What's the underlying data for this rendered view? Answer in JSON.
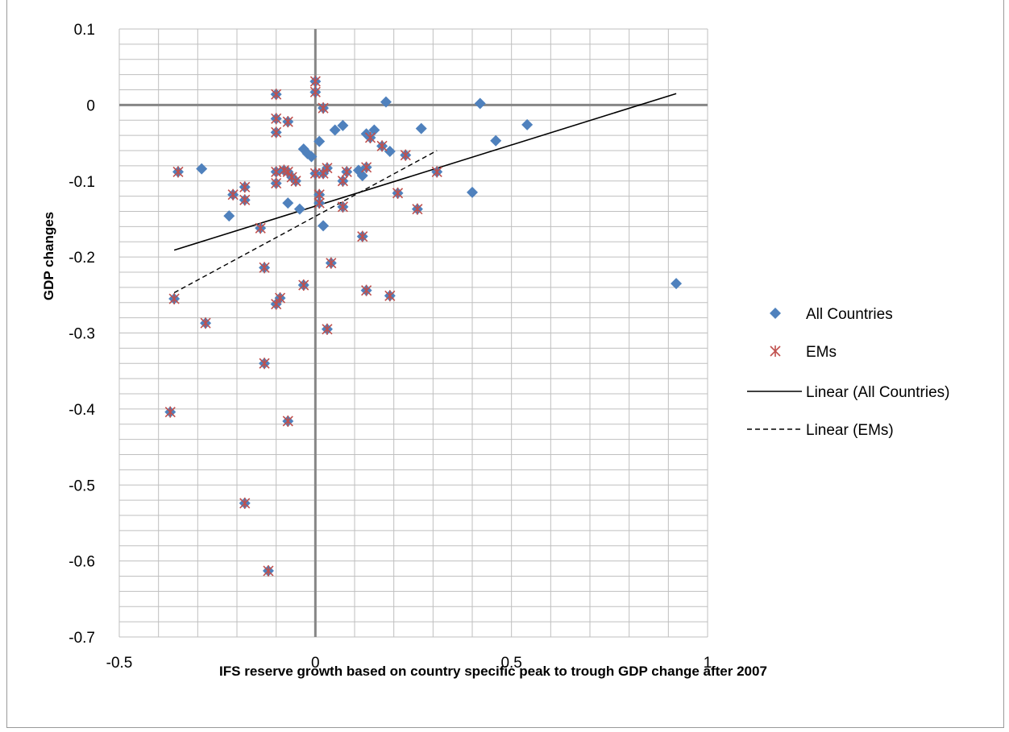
{
  "chart_data": {
    "type": "scatter",
    "title": "",
    "xlabel": "IFS reserve growth based on country specific peak to trough GDP change after 2007",
    "ylabel": "GDP changes",
    "xlim": [
      -0.5,
      1
    ],
    "ylim": [
      -0.7,
      0.1
    ],
    "x_major_step": 0.5,
    "x_minor_step": 0.1,
    "y_major_step": 0.1,
    "y_minor_step": 0.02,
    "x_tick_labels": [
      "-0.5",
      "0",
      "0.5",
      "1"
    ],
    "y_tick_labels": [
      "0.1",
      "0",
      "-0.1",
      "-0.2",
      "-0.3",
      "-0.4",
      "-0.5",
      "-0.6",
      "-0.7"
    ],
    "grid": true,
    "legend_position": "right",
    "colors": {
      "all_countries": "#4F81BD",
      "ems": "#C0504D",
      "linear_all": "#000000",
      "linear_ems": "#000000",
      "grid_minor": "#BFBFBF",
      "grid_zero": "#868686"
    },
    "series": [
      {
        "name": "All Countries",
        "marker": "diamond",
        "points": [
          [
            -0.35,
            -0.088
          ],
          [
            -0.29,
            -0.084
          ],
          [
            -0.22,
            -0.146
          ],
          [
            -0.21,
            -0.118
          ],
          [
            -0.18,
            -0.108
          ],
          [
            -0.18,
            -0.125
          ],
          [
            -0.14,
            -0.162
          ],
          [
            -0.13,
            -0.214
          ],
          [
            -0.36,
            -0.255
          ],
          [
            -0.28,
            -0.287
          ],
          [
            -0.37,
            -0.404
          ],
          [
            -0.13,
            -0.34
          ],
          [
            -0.18,
            -0.524
          ],
          [
            -0.12,
            -0.613
          ],
          [
            -0.1,
            0.014
          ],
          [
            -0.1,
            -0.018
          ],
          [
            -0.1,
            -0.036
          ],
          [
            -0.1,
            -0.103
          ],
          [
            -0.1,
            -0.088
          ],
          [
            -0.08,
            -0.086
          ],
          [
            -0.07,
            -0.022
          ],
          [
            -0.07,
            -0.129
          ],
          [
            -0.07,
            -0.088
          ],
          [
            -0.06,
            -0.095
          ],
          [
            -0.05,
            -0.1
          ],
          [
            -0.04,
            -0.137
          ],
          [
            -0.03,
            -0.058
          ],
          [
            -0.02,
            -0.064
          ],
          [
            -0.01,
            -0.068
          ],
          [
            -0.03,
            -0.237
          ],
          [
            -0.09,
            -0.254
          ],
          [
            -0.1,
            -0.262
          ],
          [
            -0.07,
            -0.416
          ],
          [
            0.0,
            0.031
          ],
          [
            0.0,
            0.017
          ],
          [
            0.0,
            -0.09
          ],
          [
            0.01,
            -0.118
          ],
          [
            0.01,
            -0.129
          ],
          [
            0.01,
            -0.048
          ],
          [
            0.02,
            -0.004
          ],
          [
            0.02,
            -0.09
          ],
          [
            0.02,
            -0.159
          ],
          [
            0.03,
            -0.083
          ],
          [
            0.03,
            -0.295
          ],
          [
            0.04,
            -0.208
          ],
          [
            0.05,
            -0.033
          ],
          [
            0.07,
            -0.027
          ],
          [
            0.07,
            -0.1
          ],
          [
            0.07,
            -0.134
          ],
          [
            0.08,
            -0.088
          ],
          [
            0.11,
            -0.086
          ],
          [
            0.12,
            -0.093
          ],
          [
            0.12,
            -0.173
          ],
          [
            0.13,
            -0.038
          ],
          [
            0.13,
            -0.082
          ],
          [
            0.14,
            -0.043
          ],
          [
            0.15,
            -0.033
          ],
          [
            0.13,
            -0.244
          ],
          [
            0.17,
            -0.054
          ],
          [
            0.18,
            0.004
          ],
          [
            0.19,
            -0.061
          ],
          [
            0.19,
            -0.251
          ],
          [
            0.21,
            -0.116
          ],
          [
            0.23,
            -0.066
          ],
          [
            0.26,
            -0.137
          ],
          [
            0.27,
            -0.031
          ],
          [
            0.31,
            -0.088
          ],
          [
            0.4,
            -0.115
          ],
          [
            0.42,
            0.002
          ],
          [
            0.46,
            -0.047
          ],
          [
            0.54,
            -0.026
          ],
          [
            0.92,
            -0.235
          ]
        ]
      },
      {
        "name": "EMs",
        "marker": "asterisk",
        "points": [
          [
            -0.35,
            -0.088
          ],
          [
            -0.21,
            -0.118
          ],
          [
            -0.18,
            -0.108
          ],
          [
            -0.18,
            -0.125
          ],
          [
            -0.14,
            -0.162
          ],
          [
            -0.13,
            -0.214
          ],
          [
            -0.36,
            -0.255
          ],
          [
            -0.28,
            -0.287
          ],
          [
            -0.37,
            -0.404
          ],
          [
            -0.13,
            -0.34
          ],
          [
            -0.18,
            -0.524
          ],
          [
            -0.12,
            -0.613
          ],
          [
            -0.1,
            0.014
          ],
          [
            -0.1,
            -0.018
          ],
          [
            -0.1,
            -0.036
          ],
          [
            -0.1,
            -0.103
          ],
          [
            -0.1,
            -0.088
          ],
          [
            -0.08,
            -0.086
          ],
          [
            -0.07,
            -0.022
          ],
          [
            -0.07,
            -0.088
          ],
          [
            -0.06,
            -0.095
          ],
          [
            -0.05,
            -0.1
          ],
          [
            -0.03,
            -0.237
          ],
          [
            -0.09,
            -0.254
          ],
          [
            -0.1,
            -0.262
          ],
          [
            -0.07,
            -0.416
          ],
          [
            0.0,
            0.031
          ],
          [
            0.0,
            0.017
          ],
          [
            0.0,
            -0.09
          ],
          [
            0.01,
            -0.118
          ],
          [
            0.01,
            -0.129
          ],
          [
            0.02,
            -0.004
          ],
          [
            0.02,
            -0.09
          ],
          [
            0.03,
            -0.083
          ],
          [
            0.03,
            -0.295
          ],
          [
            0.04,
            -0.208
          ],
          [
            0.07,
            -0.1
          ],
          [
            0.07,
            -0.134
          ],
          [
            0.08,
            -0.088
          ],
          [
            0.12,
            -0.173
          ],
          [
            0.13,
            -0.082
          ],
          [
            0.14,
            -0.043
          ],
          [
            0.13,
            -0.244
          ],
          [
            0.17,
            -0.054
          ],
          [
            0.19,
            -0.251
          ],
          [
            0.21,
            -0.116
          ],
          [
            0.23,
            -0.066
          ],
          [
            0.26,
            -0.137
          ],
          [
            0.31,
            -0.088
          ]
        ]
      },
      {
        "name": "Linear (All Countries)",
        "type": "line",
        "style": "solid",
        "points": [
          [
            -0.36,
            -0.191
          ],
          [
            0.92,
            0.015
          ]
        ]
      },
      {
        "name": "Linear (EMs)",
        "type": "line",
        "style": "dashed",
        "points": [
          [
            -0.36,
            -0.247
          ],
          [
            0.31,
            -0.06
          ]
        ]
      }
    ]
  }
}
